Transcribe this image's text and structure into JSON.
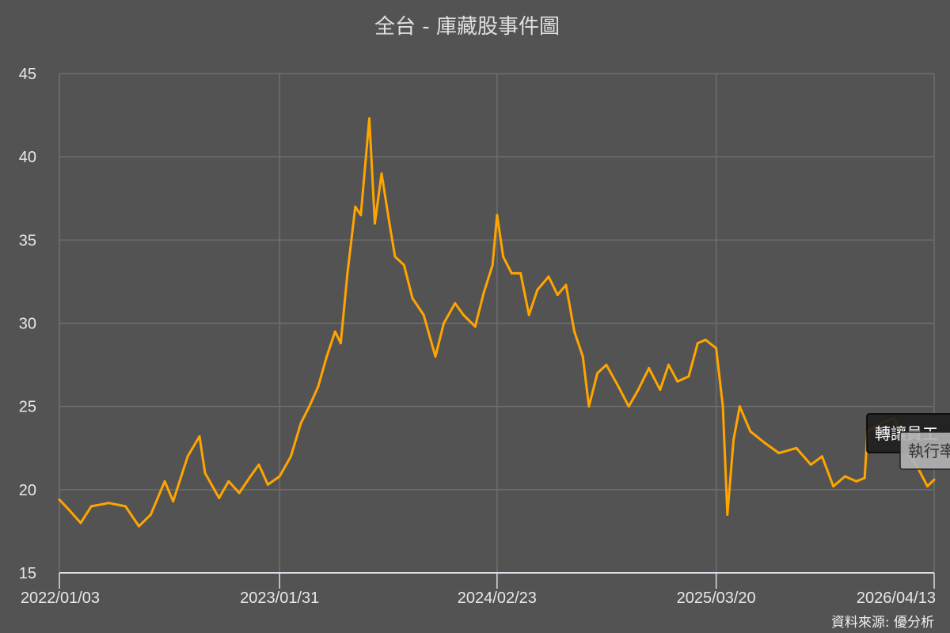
{
  "chart_data": {
    "type": "line",
    "title": "全台 - 庫藏股事件圖",
    "source": "資料來源: 優分析",
    "xlabel": "",
    "ylabel": "",
    "ylim": [
      15,
      45
    ],
    "yticks": [
      15,
      20,
      25,
      30,
      35,
      40,
      45
    ],
    "xlim": [
      "2022/01/03",
      "2026/04/13"
    ],
    "xticks": [
      "2022/01/03",
      "2023/01/31",
      "2024/02/23",
      "2025/03/20",
      "2026/04/13"
    ],
    "grid": true,
    "line_color": "#ffa500",
    "background": "#535353",
    "annotations": [
      {
        "text": "轉讓員工",
        "date": "2025/12/15",
        "style": "dark"
      },
      {
        "text": "執行率",
        "date": "2026/02/15",
        "style": "light"
      }
    ],
    "series": [
      {
        "x": [
          "2022/01/03",
          "2022/01/20",
          "2022/02/10",
          "2022/03/01",
          "2022/04/01",
          "2022/05/01",
          "2022/05/25",
          "2022/06/15",
          "2022/07/10",
          "2022/07/25",
          "2022/08/20",
          "2022/09/10",
          "2022/09/20",
          "2022/10/15",
          "2022/11/01",
          "2022/11/20",
          "2022/12/10",
          "2022/12/25",
          "2023/01/10",
          "2023/01/31",
          "2023/02/20",
          "2023/03/10",
          "2023/03/25",
          "2023/04/10",
          "2023/04/25",
          "2023/05/10",
          "2023/05/20",
          "2023/06/01",
          "2023/06/15",
          "2023/06/25",
          "2023/07/10",
          "2023/07/20",
          "2023/08/01",
          "2023/08/15",
          "2023/08/25",
          "2023/09/10",
          "2023/09/25",
          "2023/10/15",
          "2023/11/05",
          "2023/11/20",
          "2023/12/10",
          "2023/12/25",
          "2024/01/15",
          "2024/01/30",
          "2024/02/15",
          "2024/02/23",
          "2024/03/05",
          "2024/03/20",
          "2024/04/05",
          "2024/04/20",
          "2024/05/05",
          "2024/05/25",
          "2024/06/10",
          "2024/06/25",
          "2024/07/10",
          "2024/07/25",
          "2024/08/05",
          "2024/08/20",
          "2024/09/05",
          "2024/09/25",
          "2024/10/15",
          "2024/11/01",
          "2024/11/20",
          "2024/12/10",
          "2024/12/25",
          "2025/01/10",
          "2025/01/30",
          "2025/02/15",
          "2025/03/01",
          "2025/03/20",
          "2025/04/01",
          "2025/04/09",
          "2025/04/20",
          "2025/05/01",
          "2025/05/20",
          "2025/06/15",
          "2025/07/10",
          "2025/08/10",
          "2025/09/05",
          "2025/09/25",
          "2025/10/15",
          "2025/11/05",
          "2025/11/25",
          "2025/12/10",
          "2025/12/15",
          "2026/01/10",
          "2026/02/01",
          "2026/02/20",
          "2026/03/15",
          "2026/04/01",
          "2026/04/13"
        ],
        "y": [
          19.4,
          18.8,
          18.0,
          19.0,
          19.2,
          19.0,
          17.8,
          18.5,
          20.5,
          19.3,
          22.0,
          23.2,
          21.0,
          19.5,
          20.5,
          19.8,
          20.8,
          21.5,
          20.3,
          20.8,
          22.0,
          24.0,
          25.0,
          26.2,
          28.0,
          29.5,
          28.8,
          33.0,
          37.0,
          36.5,
          42.3,
          36.0,
          39.0,
          36.0,
          34.0,
          33.5,
          31.5,
          30.5,
          28.0,
          30.0,
          31.2,
          30.5,
          29.8,
          31.8,
          33.5,
          36.5,
          34.0,
          33.0,
          33.0,
          30.5,
          32.0,
          32.8,
          31.7,
          32.3,
          29.5,
          28.0,
          25.0,
          27.0,
          27.5,
          26.3,
          25.0,
          26.0,
          27.3,
          26.0,
          27.5,
          26.5,
          26.8,
          28.8,
          29.0,
          28.5,
          25.0,
          18.5,
          23.0,
          25.0,
          23.5,
          22.8,
          22.2,
          22.5,
          21.5,
          22.0,
          20.2,
          20.8,
          20.5,
          20.7,
          23.5,
          24.0,
          24.3,
          22.5,
          21.3,
          20.2,
          20.6
        ]
      }
    ]
  }
}
